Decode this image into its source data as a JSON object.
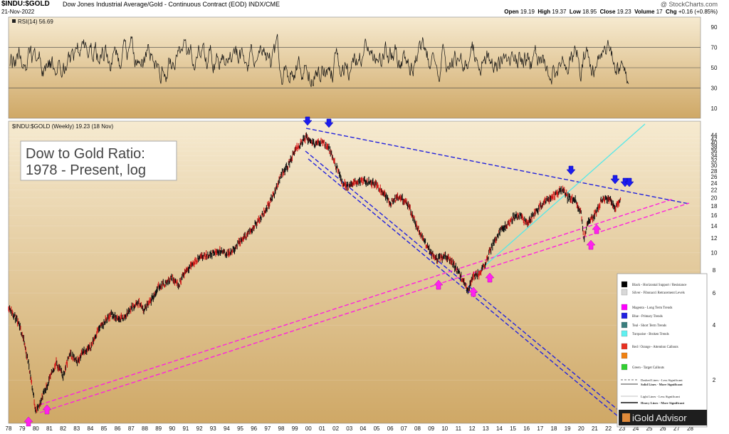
{
  "header": {
    "symbol": "$INDU:$GOLD",
    "description": "Dow Jones Industrial Average/Gold - Continuous Contract (EOD)",
    "exchange": "INDX/CME",
    "copyright": "@ StockCharts.com",
    "date": "21-Nov-2022",
    "open_label": "Open",
    "open": "19.19",
    "high_label": "High",
    "high": "19.37",
    "low_label": "Low",
    "low": "18.95",
    "close_label": "Close",
    "close": "19.23",
    "volume_label": "Volume",
    "volume": "17",
    "chg_label": "Chg",
    "chg": "+0.16 (+0.85%)"
  },
  "rsi_panel": {
    "label": "RSI(14) 56.69",
    "ticks": [
      "90",
      "70",
      "50",
      "30",
      "10"
    ]
  },
  "price_panel": {
    "label": "$INDU:$GOLD (Weekly) 19.23 (18 Nov)"
  },
  "annotation": {
    "line1": "Dow to Gold Ratio:",
    "line2": "1978 - Present, log"
  },
  "legend": {
    "items": [
      {
        "color": "#000000",
        "text": "Black - Horizontal Support / Resistance"
      },
      {
        "color": "#d8d8d8",
        "text": "Silver - Fibonacci Retracement Levels"
      },
      {
        "color": "#ff00ff",
        "text": "Magenta - Long Term Trends"
      },
      {
        "color": "#2020e0",
        "text": "Blue - Primary Trends"
      },
      {
        "color": "#3a7d7d",
        "text": "Teal - Short Term Trends"
      },
      {
        "color": "#5ff0f0",
        "text": "Turquoise - Broken Trends"
      },
      {
        "color": "#e83020",
        "text": "Red / Orange - Attention Callouts"
      },
      {
        "color": "#f08010",
        "text": ""
      },
      {
        "color": "#30d030",
        "text": "Green - Target Callouts"
      }
    ],
    "line_notes": [
      "Dashed Lines - Less Significant",
      "Solid Lines - More Significant",
      "Light Lines - Less Significant",
      "Heavy Lines - More Significant"
    ],
    "brand": "iGold Advisor"
  },
  "colors": {
    "background_top": "#f6ead0",
    "background_bottom": "#cfa866",
    "blue": "#2222dd",
    "magenta": "#ff22dd",
    "turquoise": "#55e8e8"
  },
  "chart_data": {
    "type": "line",
    "scale": "log",
    "x_tick_labels": [
      "78",
      "79",
      "80",
      "81",
      "82",
      "83",
      "84",
      "85",
      "86",
      "87",
      "88",
      "89",
      "90",
      "91",
      "92",
      "93",
      "94",
      "95",
      "96",
      "97",
      "98",
      "99",
      "00",
      "01",
      "02",
      "03",
      "04",
      "05",
      "06",
      "07",
      "08",
      "09",
      "10",
      "11",
      "12",
      "13",
      "14",
      "15",
      "16",
      "17",
      "18",
      "19",
      "20",
      "21",
      "22",
      "23",
      "24",
      "25",
      "26",
      "27",
      "28"
    ],
    "y_tick_labels": [
      "44",
      "42",
      "40",
      "38",
      "36",
      "34",
      "32",
      "30",
      "28",
      "26",
      "24",
      "22",
      "20",
      "18",
      "16",
      "14",
      "12",
      "10",
      "8",
      "6",
      "4",
      "2"
    ],
    "ylim": [
      1.2,
      48
    ],
    "series": [
      {
        "x": [
          1978.0,
          1978.5,
          1979.0,
          1979.5,
          1980.0,
          1980.3,
          1980.5,
          1981.0,
          1981.5,
          1982.0,
          1982.5,
          1983.0,
          1983.5,
          1984.0,
          1984.5,
          1985.0,
          1985.5,
          1986.0,
          1986.5,
          1987.0,
          1987.6,
          1987.9,
          1988.5,
          1989.0,
          1989.5,
          1990.0,
          1990.5,
          1991.0,
          1991.5,
          1992.0,
          1992.5,
          1993.0,
          1993.5,
          1994.0,
          1994.5,
          1995.0,
          1995.5,
          1996.0,
          1996.5,
          1997.0,
          1997.5,
          1998.0,
          1998.5,
          1999.0,
          1999.5,
          1999.8,
          2000.5,
          2001.0,
          2001.5,
          2002.0,
          2002.5,
          2003.0,
          2003.5,
          2004.0,
          2004.5,
          2005.0,
          2005.5,
          2006.0,
          2006.5,
          2007.0,
          2007.5,
          2008.0,
          2008.5,
          2009.0,
          2009.5,
          2010.0,
          2010.5,
          2011.0,
          2011.5,
          2011.7,
          2012.0,
          2012.5,
          2013.0,
          2013.5,
          2014.0,
          2014.5,
          2015.0,
          2015.5,
          2016.0,
          2016.5,
          2017.0,
          2017.5,
          2018.0,
          2018.7,
          2019.0,
          2019.5,
          2020.0,
          2020.2,
          2020.5,
          2021.0,
          2021.5,
          2022.0,
          2022.5,
          2022.9
        ],
        "y": [
          5.1,
          4.4,
          3.6,
          2.4,
          1.35,
          1.45,
          1.65,
          2.0,
          2.5,
          2.1,
          2.8,
          2.5,
          2.9,
          3.0,
          3.7,
          4.1,
          4.6,
          4.3,
          4.4,
          5.0,
          5.3,
          4.8,
          5.5,
          6.5,
          6.8,
          7.3,
          6.7,
          8.0,
          8.7,
          9.3,
          9.6,
          9.9,
          10.2,
          9.8,
          10.4,
          11.5,
          12.5,
          14.0,
          15.5,
          18.0,
          21.0,
          27.0,
          30.0,
          36.0,
          40.0,
          43.0,
          39.0,
          41.0,
          37.0,
          30.0,
          24.0,
          23.0,
          24.5,
          24.5,
          24.5,
          23.5,
          21.5,
          18.5,
          20.0,
          19.5,
          17.0,
          13.5,
          11.5,
          10.0,
          9.2,
          9.6,
          9.0,
          7.8,
          6.6,
          6.2,
          7.3,
          7.6,
          8.9,
          11.0,
          13.0,
          14.0,
          15.5,
          16.0,
          14.5,
          16.0,
          18.0,
          19.5,
          20.5,
          22.5,
          20.0,
          19.8,
          16.5,
          12.0,
          14.5,
          16.0,
          19.5,
          20.0,
          17.5,
          19.23
        ]
      }
    ],
    "rsi": {
      "ylim": [
        0,
        100
      ],
      "levels": [
        70,
        50,
        30
      ]
    }
  }
}
